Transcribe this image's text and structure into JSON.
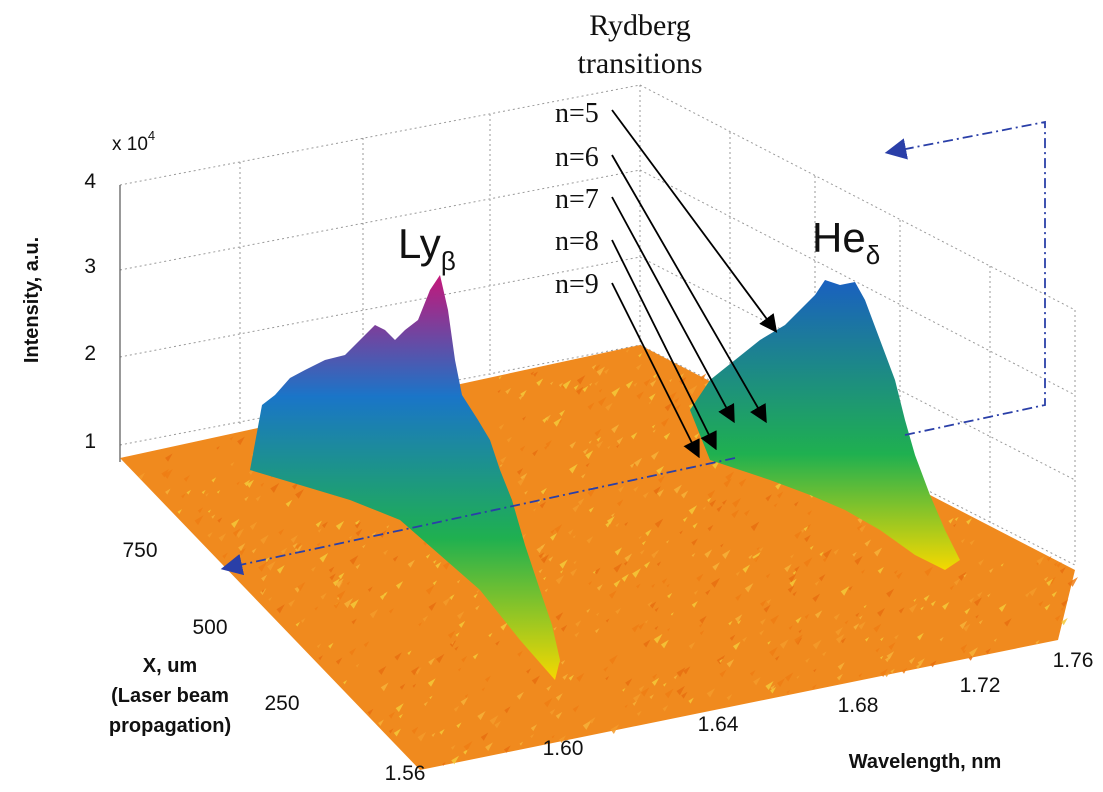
{
  "chart_data": {
    "type": "surface",
    "title": "",
    "annotation_title": [
      "Rydberg",
      "transitions"
    ],
    "scale_label": "x 10",
    "scale_exponent": "4",
    "z_axis": {
      "label": "Intensity, a.u.",
      "ticks": [
        "1",
        "2",
        "3",
        "4"
      ],
      "range": [
        0.5,
        4
      ]
    },
    "x_axis": {
      "label": "Wavelength, nm",
      "ticks": [
        "1.56",
        "1.60",
        "1.64",
        "1.68",
        "1.72",
        "1.76"
      ],
      "range": [
        1.56,
        1.77
      ]
    },
    "y_axis": {
      "label_lines": [
        "X, um",
        "(Laser beam",
        "propagation)"
      ],
      "ticks": [
        "250",
        "500",
        "750"
      ],
      "range": [
        100,
        900
      ]
    },
    "peaks": [
      {
        "label": "Ly",
        "subscript": "β",
        "wavelength": 1.6,
        "peak_intensity": 3.0
      },
      {
        "label": "He",
        "subscript": "δ",
        "wavelength": 1.745,
        "peak_intensity": 2.6
      }
    ],
    "rydberg_lines": [
      "n=5",
      "n=6",
      "n=7",
      "n=8",
      "n=9"
    ],
    "baseline_intensity": 0.9,
    "grid": true,
    "colors": {
      "surface_low": "#f08a1e",
      "mid": "#f5d800",
      "green": "#1fb050",
      "blue": "#1a75c8",
      "magenta": "#c4177a",
      "dashed_lines": "#2a3fa8"
    }
  }
}
